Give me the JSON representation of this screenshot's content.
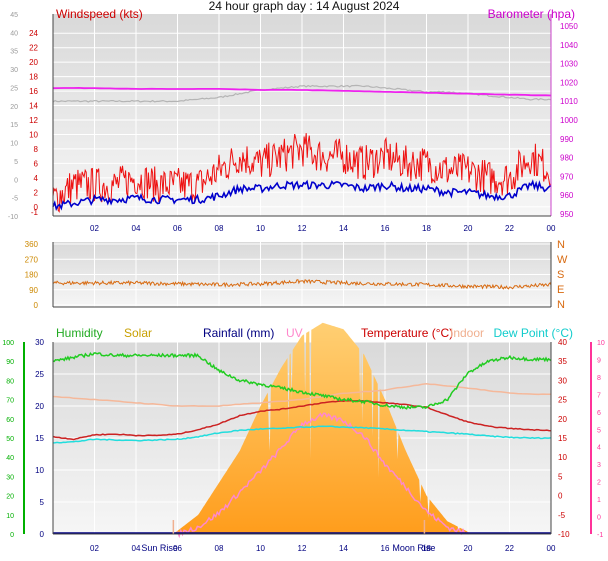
{
  "page": {
    "title": "24 hour graph day : 14 August 2024"
  },
  "colors": {
    "bg_top": "#e6e6e6",
    "bg_bottom": "#f4f4f4",
    "windspeed": "#ee1111",
    "windavg": "#0000cc",
    "gust_gray": "#b4b4b4",
    "barometer": "#ee22ee",
    "direction": "#d86a10",
    "humidity": "#22cc22",
    "solar": "#ffb030",
    "rainfall": "#000080",
    "uv": "#ff88cc",
    "temperature": "#cc2222",
    "indoor": "#f5b89a",
    "dewpoint": "#22dddd",
    "axis_green": "#00b000",
    "axis_pink": "#ff3399",
    "axis_red": "#cc0000",
    "axis_gray": "#999999",
    "axis_orange": "#cc8800"
  },
  "chart_data": [
    {
      "type": "line",
      "legend": {
        "windspeed": "Windspeed (kts)",
        "barometer": "Barometer (hpa)"
      },
      "x_ticks": [
        "02",
        "04",
        "06",
        "08",
        "10",
        "12",
        "14",
        "16",
        "18",
        "20",
        "22",
        "00"
      ],
      "x_hours": [
        2,
        4,
        6,
        8,
        10,
        12,
        14,
        16,
        18,
        20,
        22,
        24
      ],
      "ylim_gust": [
        -10,
        45
      ],
      "y_ticks_gust": [
        -10,
        -5,
        0,
        5,
        10,
        15,
        20,
        25,
        30,
        35,
        40,
        45
      ],
      "ylim_wind": [
        -1,
        25
      ],
      "y_ticks_wind": [
        0,
        2,
        4,
        6,
        8,
        10,
        12,
        14,
        16,
        18,
        20,
        22,
        24
      ],
      "y_ticks_wind_neg": [
        "-1"
      ],
      "ylim_baro": [
        950,
        1050
      ],
      "y_ticks_baro": [
        950,
        960,
        970,
        980,
        990,
        1000,
        1010,
        1020,
        1030,
        1040,
        1050
      ],
      "series": [
        {
          "key": "gust_gray",
          "hours": [
            0,
            2,
            4,
            6,
            7,
            8,
            9,
            10,
            11,
            12,
            13,
            14,
            15,
            16,
            17,
            18,
            19,
            20,
            21,
            22,
            23,
            24
          ],
          "values": [
            1010,
            1010,
            1010,
            1010,
            1011,
            1012,
            1014,
            1016,
            1017,
            1018,
            1018,
            1018,
            1018,
            1017,
            1016,
            1015,
            1015,
            1014,
            1013,
            1012,
            1011,
            1011
          ]
        },
        {
          "key": "barometer",
          "hours": [
            0,
            2,
            4,
            6,
            8,
            10,
            12,
            14,
            16,
            18,
            20,
            22,
            24
          ],
          "values": [
            1017,
            1017,
            1016.5,
            1016.5,
            1016.5,
            1016,
            1016,
            1015.5,
            1015,
            1014.5,
            1014,
            1013.5,
            1013
          ]
        },
        {
          "key": "windspeed",
          "hours": [
            0,
            1,
            2,
            3,
            4,
            5,
            6,
            7,
            8,
            9,
            10,
            11,
            12,
            13,
            14,
            15,
            16,
            17,
            18,
            19,
            20,
            21,
            22,
            23,
            24
          ],
          "values": [
            1,
            3,
            3,
            3,
            4,
            3,
            3,
            3,
            5,
            7,
            6,
            7,
            8,
            7,
            7,
            6,
            7,
            6,
            6,
            5,
            5,
            4,
            4,
            7,
            5
          ]
        },
        {
          "key": "windavg",
          "hours": [
            0,
            1,
            2,
            3,
            4,
            5,
            6,
            7,
            8,
            9,
            10,
            11,
            12,
            13,
            14,
            15,
            16,
            17,
            18,
            19,
            20,
            21,
            22,
            23,
            24
          ],
          "values": [
            0,
            0.5,
            1,
            1,
            1.2,
            1,
            1,
            1,
            1.5,
            2.5,
            2.5,
            3,
            3,
            3,
            3,
            2.5,
            3,
            2.5,
            2.5,
            2,
            2,
            1.5,
            1.5,
            3,
            2.5
          ]
        }
      ]
    },
    {
      "type": "line",
      "legend_dirs": [
        "N",
        "W",
        "S",
        "E",
        "N"
      ],
      "ylim": [
        0,
        360
      ],
      "y_ticks": [
        0,
        90,
        180,
        270,
        360
      ],
      "series": [
        {
          "key": "direction",
          "hours": [
            0,
            2,
            4,
            6,
            8,
            10,
            12,
            14,
            16,
            18,
            20,
            22,
            24
          ],
          "values": [
            130,
            130,
            130,
            125,
            120,
            125,
            140,
            130,
            125,
            120,
            110,
            105,
            120
          ]
        }
      ]
    },
    {
      "type": "line",
      "legend": {
        "humidity": "Humidity",
        "solar": "Solar",
        "rainfall": "Rainfall (mm)",
        "uv": "UV",
        "temperature": "Temperature (°C)",
        "indoor": "Indoor",
        "dewpoint": "Dew Point (°C)"
      },
      "annotations": {
        "sun_rise": "Sun Rise",
        "moon_rise": "Moon Rise"
      },
      "sun_rise_hour": 5.8,
      "moon_rise_hour": 17.9,
      "ylim_humidity": [
        0,
        100
      ],
      "y_ticks_humidity": [
        0,
        10,
        20,
        30,
        40,
        50,
        60,
        70,
        80,
        90,
        100
      ],
      "ylim_temp": [
        0,
        30
      ],
      "y_ticks_temp": [
        0,
        5,
        10,
        15,
        20,
        25,
        30
      ],
      "ylim_uv": [
        -1,
        10
      ],
      "y_ticks_uv": [
        -1,
        0,
        1,
        2,
        3,
        4,
        5,
        6,
        7,
        8,
        9,
        10
      ],
      "y_ticks_right": [
        -10,
        -5,
        0,
        5,
        10,
        15,
        20,
        25,
        30,
        35,
        40
      ],
      "series": [
        {
          "key": "humidity",
          "hours": [
            0,
            1,
            2,
            3,
            4,
            5,
            6,
            7,
            8,
            9,
            10,
            11,
            12,
            13,
            14,
            15,
            16,
            17,
            18,
            19,
            20,
            21,
            22,
            23,
            24
          ],
          "values": [
            90,
            92,
            94,
            93,
            93,
            93,
            93,
            93,
            85,
            80,
            78,
            76,
            74,
            72,
            70,
            69,
            67,
            66,
            66,
            70,
            84,
            90,
            92,
            91,
            91
          ]
        },
        {
          "key": "temperature",
          "hours": [
            0,
            1,
            2,
            3,
            4,
            5,
            6,
            7,
            8,
            9,
            10,
            11,
            12,
            13,
            14,
            15,
            16,
            17,
            18,
            19,
            20,
            21,
            22,
            23,
            24
          ],
          "values": [
            15.2,
            14.8,
            15.5,
            15.6,
            15.4,
            15.4,
            15.6,
            16.3,
            17.2,
            18.5,
            19.2,
            19.5,
            20,
            20.5,
            20.8,
            20.8,
            20.5,
            20.2,
            19.8,
            18.6,
            17.5,
            16.8,
            16.5,
            16.3,
            16.2
          ]
        },
        {
          "key": "dewpoint",
          "hours": [
            0,
            1,
            2,
            3,
            4,
            5,
            6,
            7,
            8,
            9,
            10,
            11,
            12,
            13,
            14,
            15,
            16,
            17,
            18,
            19,
            20,
            21,
            22,
            23,
            24
          ],
          "values": [
            14.3,
            14.4,
            14.8,
            14.7,
            14.6,
            14.7,
            14.8,
            15.2,
            15.8,
            16.2,
            16.4,
            16.5,
            16.7,
            16.8,
            16.7,
            16.6,
            16.4,
            16.2,
            16,
            15.8,
            15.6,
            15.3,
            15.1,
            15,
            15
          ]
        },
        {
          "key": "indoor",
          "hours": [
            0,
            2,
            4,
            6,
            8,
            10,
            12,
            13,
            14,
            16,
            18,
            20,
            22,
            24
          ],
          "values": [
            21.5,
            21,
            20.5,
            20,
            20,
            20.5,
            21,
            21.5,
            22,
            22.5,
            23.5,
            22.8,
            22,
            21.8
          ]
        },
        {
          "key": "uv",
          "hours": [
            6,
            7,
            8,
            9,
            10,
            11,
            12,
            13,
            14,
            15,
            16,
            17,
            18,
            19,
            20
          ],
          "values": [
            -1,
            -0.6,
            0.2,
            1.4,
            2.6,
            3.9,
            5.3,
            5.8,
            5.5,
            4.6,
            3,
            1.7,
            0.3,
            -0.6,
            -1
          ]
        },
        {
          "key": "solar",
          "hours": [
            5.8,
            7,
            8,
            9,
            10,
            11,
            12,
            13,
            14,
            15,
            16,
            17,
            18,
            19,
            20.2
          ],
          "values": [
            0,
            3,
            8,
            13,
            20,
            26,
            31,
            33,
            32,
            28,
            21,
            13,
            6,
            2,
            0
          ]
        }
      ]
    }
  ]
}
